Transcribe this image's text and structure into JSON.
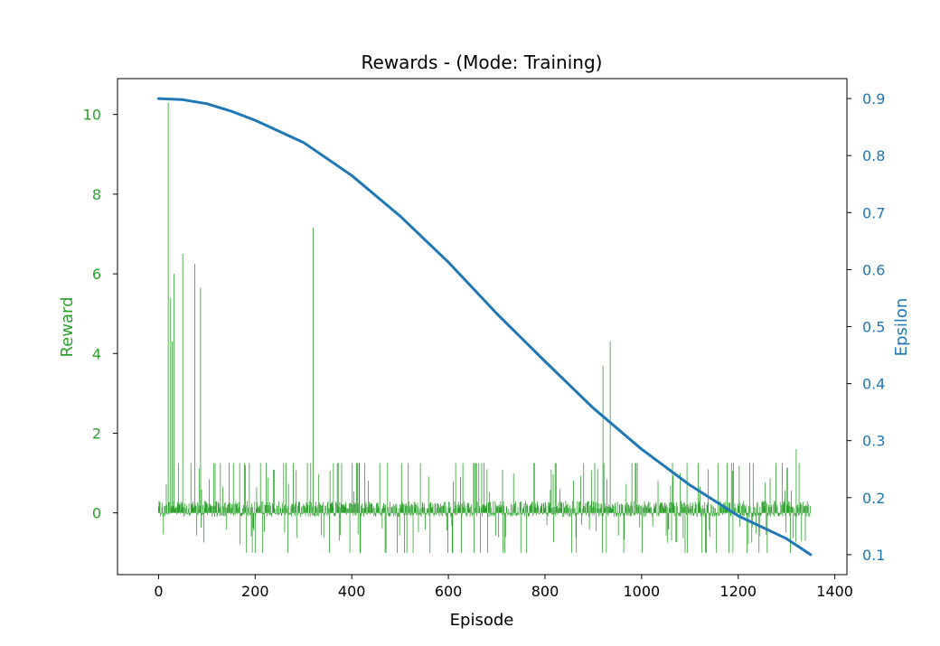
{
  "chart_data": {
    "type": "bar",
    "title": "Rewards - (Mode: Training)",
    "xlabel": "Episode",
    "ylabel": "Reward",
    "y2label": "Epsilon",
    "xlim": [
      -85,
      1425
    ],
    "ylim": [
      -1.55,
      10.9
    ],
    "y2lim": [
      0.065,
      0.935
    ],
    "x_ticks": [
      0,
      200,
      400,
      600,
      800,
      1000,
      1200,
      1400
    ],
    "y_ticks": [
      0,
      2,
      4,
      6,
      8,
      10
    ],
    "y2_ticks": [
      0.1,
      0.2,
      0.3,
      0.4,
      0.5,
      0.6,
      0.7,
      0.8,
      0.9
    ],
    "grid": false,
    "colors": {
      "reward": "#2ca02c",
      "epsilon": "#1f77b4",
      "axes": "#000000"
    },
    "series": [
      {
        "kind": "reward-bars",
        "axis": "left",
        "episodes": 1350,
        "peaks": [
          {
            "x": 20,
            "y": 10.3
          },
          {
            "x": 25,
            "y": 5.4
          },
          {
            "x": 28,
            "y": 4.3
          },
          {
            "x": 32,
            "y": 6.0
          },
          {
            "x": 50,
            "y": 6.5
          },
          {
            "x": 75,
            "y": 6.25
          },
          {
            "x": 87,
            "y": 5.65
          },
          {
            "x": 320,
            "y": 7.15
          },
          {
            "x": 920,
            "y": 3.7
          },
          {
            "x": 935,
            "y": 4.3
          },
          {
            "x": 1320,
            "y": 1.6
          }
        ]
      },
      {
        "kind": "epsilon-line",
        "axis": "right",
        "x": [
          0,
          50,
          100,
          150,
          200,
          300,
          400,
          500,
          600,
          700,
          800,
          900,
          1000,
          1100,
          1200,
          1300,
          1350
        ],
        "values": [
          0.9,
          0.898,
          0.891,
          0.878,
          0.862,
          0.823,
          0.765,
          0.694,
          0.613,
          0.523,
          0.439,
          0.357,
          0.285,
          0.222,
          0.168,
          0.128,
          0.1
        ]
      }
    ]
  }
}
